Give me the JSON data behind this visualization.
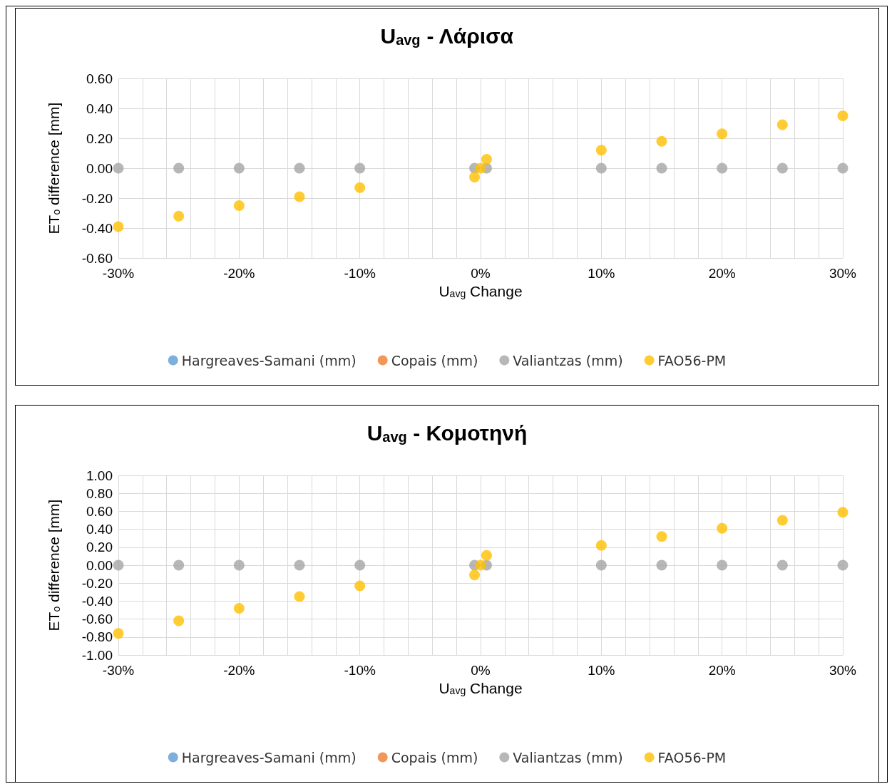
{
  "chart_data": [
    {
      "type": "scatter",
      "title": "U$_{avg}$ - Λάρισα",
      "xlabel": "U$_{avg}$ Change",
      "ylabel": "ET$_{o}$ difference [mm]",
      "x": [
        -30,
        -25,
        -20,
        -15,
        -10,
        -0.5,
        0,
        0.5,
        10,
        15,
        20,
        25,
        30
      ],
      "series": [
        {
          "name": "Hargreaves-Samani (mm)",
          "color": "#5b9bd5",
          "values": [
            null,
            null,
            null,
            null,
            null,
            null,
            null,
            null,
            null,
            null,
            null,
            null,
            null
          ]
        },
        {
          "name": "Copais (mm)",
          "color": "#ed7d31",
          "values": [
            null,
            null,
            null,
            null,
            null,
            null,
            null,
            null,
            null,
            null,
            null,
            null,
            null
          ]
        },
        {
          "name": "Valiantzas (mm)",
          "color": "#a5a5a5",
          "values": [
            0,
            0,
            0,
            0,
            0,
            0,
            null,
            0,
            0,
            0,
            0,
            0,
            0
          ]
        },
        {
          "name": "FAO56-PM",
          "color": "#ffc000",
          "values": [
            -0.39,
            -0.32,
            -0.25,
            -0.19,
            -0.13,
            -0.06,
            0,
            0.06,
            0.12,
            0.18,
            0.23,
            0.29,
            0.35
          ]
        }
      ],
      "xlim": [
        -30,
        30
      ],
      "xticks": [
        {
          "value": -30,
          "label": "-30%"
        },
        {
          "value": -28,
          "label": null
        },
        {
          "value": -26,
          "label": null
        },
        {
          "value": -24,
          "label": null
        },
        {
          "value": -22,
          "label": null
        },
        {
          "value": -20,
          "label": "-20%"
        },
        {
          "value": -18,
          "label": null
        },
        {
          "value": -16,
          "label": null
        },
        {
          "value": -14,
          "label": null
        },
        {
          "value": -12,
          "label": null
        },
        {
          "value": -10,
          "label": "-10%"
        },
        {
          "value": -8,
          "label": null
        },
        {
          "value": -6,
          "label": null
        },
        {
          "value": -4,
          "label": null
        },
        {
          "value": -2,
          "label": null
        },
        {
          "value": 0,
          "label": "0%"
        },
        {
          "value": 2,
          "label": null
        },
        {
          "value": 4,
          "label": null
        },
        {
          "value": 6,
          "label": null
        },
        {
          "value": 8,
          "label": null
        },
        {
          "value": 10,
          "label": "10%"
        },
        {
          "value": 12,
          "label": null
        },
        {
          "value": 14,
          "label": null
        },
        {
          "value": 16,
          "label": null
        },
        {
          "value": 18,
          "label": null
        },
        {
          "value": 20,
          "label": "20%"
        },
        {
          "value": 22,
          "label": null
        },
        {
          "value": 24,
          "label": null
        },
        {
          "value": 26,
          "label": null
        },
        {
          "value": 28,
          "label": null
        },
        {
          "value": 30,
          "label": "30%"
        }
      ],
      "ylim": [
        -0.6,
        0.6
      ],
      "yticks": [
        {
          "value": -0.6,
          "label": "-0.60"
        },
        {
          "value": -0.4,
          "label": "-0.40"
        },
        {
          "value": -0.2,
          "label": "-0.20"
        },
        {
          "value": 0,
          "label": "0.00"
        },
        {
          "value": 0.2,
          "label": "0.20"
        },
        {
          "value": 0.4,
          "label": "0.40"
        },
        {
          "value": 0.6,
          "label": "0.60"
        }
      ],
      "grid": true,
      "legend": "bottom",
      "marker": "circle"
    },
    {
      "type": "scatter",
      "title": "U$_{avg}$ - Κομοτηνή",
      "xlabel": "U$_{avg}$ Change",
      "ylabel": "ET$_{o}$ difference [mm]",
      "x": [
        -30,
        -25,
        -20,
        -15,
        -10,
        -0.5,
        0,
        0.5,
        10,
        15,
        20,
        25,
        30
      ],
      "series": [
        {
          "name": "Hargreaves-Samani (mm)",
          "color": "#5b9bd5",
          "values": [
            null,
            null,
            null,
            null,
            null,
            null,
            null,
            null,
            null,
            null,
            null,
            null,
            null
          ]
        },
        {
          "name": "Copais (mm)",
          "color": "#ed7d31",
          "values": [
            null,
            null,
            null,
            null,
            null,
            null,
            null,
            null,
            null,
            null,
            null,
            null,
            null
          ]
        },
        {
          "name": "Valiantzas (mm)",
          "color": "#a5a5a5",
          "values": [
            0,
            0,
            0,
            0,
            0,
            0,
            null,
            0,
            0,
            0,
            0,
            0,
            0
          ]
        },
        {
          "name": "FAO56-PM",
          "color": "#ffc000",
          "values": [
            -0.76,
            -0.62,
            -0.48,
            -0.35,
            -0.23,
            -0.11,
            0,
            0.11,
            0.22,
            0.32,
            0.41,
            0.5,
            0.59
          ]
        }
      ],
      "xlim": [
        -30,
        30
      ],
      "xticks": [
        {
          "value": -30,
          "label": "-30%"
        },
        {
          "value": -28,
          "label": null
        },
        {
          "value": -26,
          "label": null
        },
        {
          "value": -24,
          "label": null
        },
        {
          "value": -22,
          "label": null
        },
        {
          "value": -20,
          "label": "-20%"
        },
        {
          "value": -18,
          "label": null
        },
        {
          "value": -16,
          "label": null
        },
        {
          "value": -14,
          "label": null
        },
        {
          "value": -12,
          "label": null
        },
        {
          "value": -10,
          "label": "-10%"
        },
        {
          "value": -8,
          "label": null
        },
        {
          "value": -6,
          "label": null
        },
        {
          "value": -4,
          "label": null
        },
        {
          "value": -2,
          "label": null
        },
        {
          "value": 0,
          "label": "0%"
        },
        {
          "value": 2,
          "label": null
        },
        {
          "value": 4,
          "label": null
        },
        {
          "value": 6,
          "label": null
        },
        {
          "value": 8,
          "label": null
        },
        {
          "value": 10,
          "label": "10%"
        },
        {
          "value": 12,
          "label": null
        },
        {
          "value": 14,
          "label": null
        },
        {
          "value": 16,
          "label": null
        },
        {
          "value": 18,
          "label": null
        },
        {
          "value": 20,
          "label": "20%"
        },
        {
          "value": 22,
          "label": null
        },
        {
          "value": 24,
          "label": null
        },
        {
          "value": 26,
          "label": null
        },
        {
          "value": 28,
          "label": null
        },
        {
          "value": 30,
          "label": "30%"
        }
      ],
      "ylim": [
        -1,
        1
      ],
      "yticks": [
        {
          "value": -1,
          "label": "-1.00"
        },
        {
          "value": -0.8,
          "label": "-0.80"
        },
        {
          "value": -0.6,
          "label": "-0.60"
        },
        {
          "value": -0.4,
          "label": "-0.40"
        },
        {
          "value": -0.2,
          "label": "-0.20"
        },
        {
          "value": 0,
          "label": "0.00"
        },
        {
          "value": 0.2,
          "label": "0.20"
        },
        {
          "value": 0.4,
          "label": "0.40"
        },
        {
          "value": 0.6,
          "label": "0.60"
        },
        {
          "value": 0.8,
          "label": "0.80"
        },
        {
          "value": 1,
          "label": "1.00"
        }
      ],
      "grid": true,
      "legend": "bottom",
      "marker": "circle"
    }
  ]
}
